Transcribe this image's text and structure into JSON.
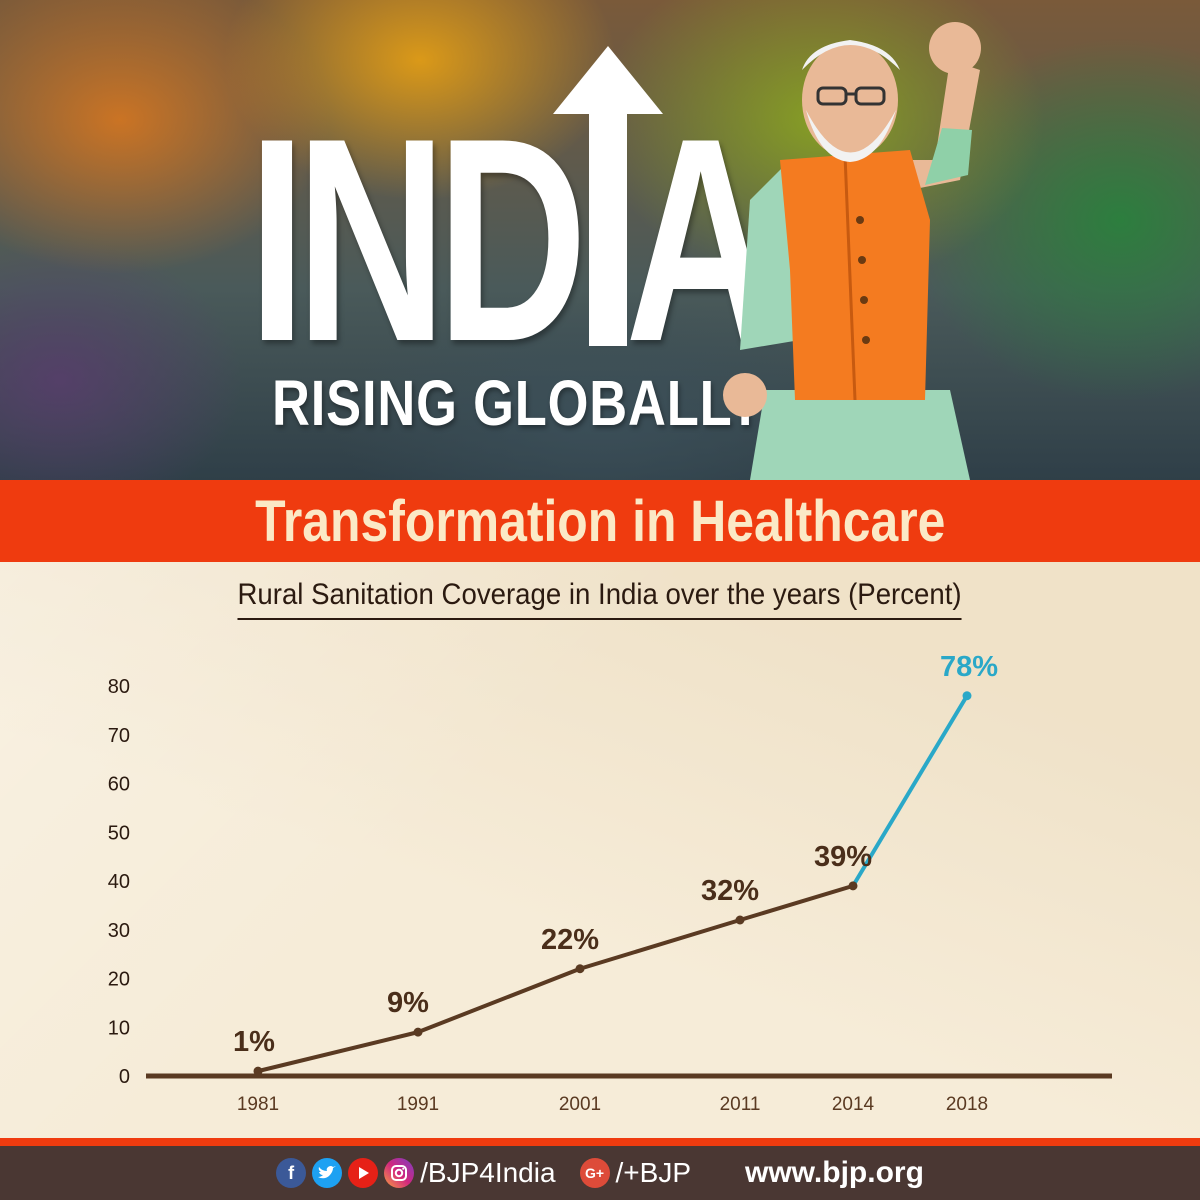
{
  "hero": {
    "title": "INDIA",
    "subtitle": "RISING GLOBALLY"
  },
  "banner": {
    "text": "Transformation in Healthcare"
  },
  "colors": {
    "banner": "#ef3b0f",
    "line": "#5a3a22",
    "accent": "#2aa8c8",
    "footer": "#4a3733"
  },
  "chart_data": {
    "type": "line",
    "title": "Rural Sanitation Coverage in India over the years (Percent)",
    "xlabel": "",
    "ylabel": "",
    "x": [
      "1981",
      "1991",
      "2001",
      "2011",
      "2014",
      "2018"
    ],
    "values": [
      1,
      9,
      22,
      32,
      39,
      78
    ],
    "data_labels": [
      "1%",
      "9%",
      "22%",
      "32%",
      "39%",
      "78%"
    ],
    "ylim": [
      0,
      80
    ],
    "yticks": [
      0,
      10,
      20,
      30,
      40,
      50,
      60,
      70,
      80
    ],
    "highlight_last_segment": true,
    "grid": false,
    "legend": "none"
  },
  "footer": {
    "social_icons": [
      "facebook-icon",
      "twitter-icon",
      "youtube-icon",
      "instagram-icon"
    ],
    "handle": "/BJP4India",
    "gplus_label": "G+",
    "gplus_handle": "/+BJP",
    "website": "www.bjp.org"
  }
}
